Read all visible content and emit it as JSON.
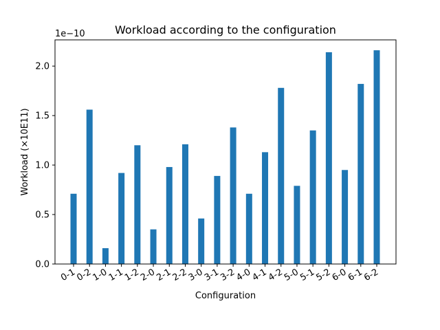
{
  "chart_data": {
    "type": "bar",
    "title": "Workload according to the configuration",
    "xlabel": "Configuration",
    "ylabel": "Workload (×10E11)",
    "offset_label": "1e−10",
    "categories": [
      "0-1",
      "0-2",
      "1-0",
      "1-1",
      "1-2",
      "2-0",
      "2-1",
      "2-2",
      "3-0",
      "3-1",
      "3-2",
      "4-0",
      "4-1",
      "4-2",
      "5-0",
      "5-1",
      "5-2",
      "6-0",
      "6-1",
      "6-2"
    ],
    "values": [
      0.71,
      1.56,
      0.16,
      0.92,
      1.2,
      0.35,
      0.98,
      1.21,
      0.46,
      0.89,
      1.38,
      0.71,
      1.13,
      1.78,
      0.79,
      1.35,
      2.14,
      0.95,
      1.82,
      2.16
    ],
    "value_scale": "1e-10",
    "ylim": [
      0,
      2.265
    ],
    "yticks": [
      "0.0",
      "0.5",
      "1.0",
      "1.5",
      "2.0"
    ],
    "ytick_values": [
      0.0,
      0.5,
      1.0,
      1.5,
      2.0
    ],
    "bar_color": "#1f77b4",
    "grid": false,
    "legend": "none"
  }
}
